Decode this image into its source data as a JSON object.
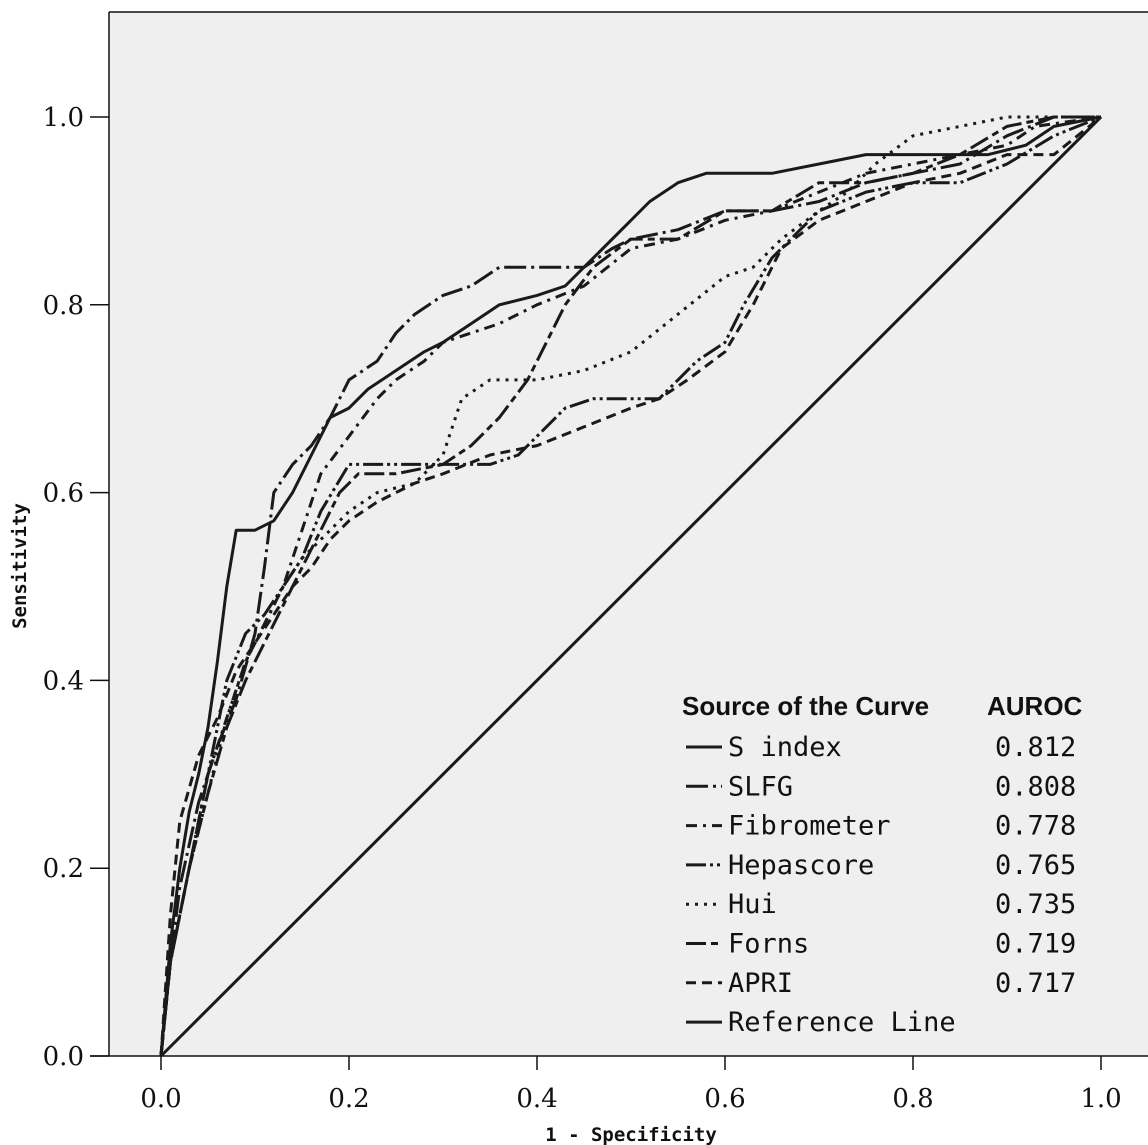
{
  "chart_data": {
    "type": "line",
    "title": "",
    "xlabel": "1 - Specificity",
    "ylabel": "Sensitivity",
    "xlim": [
      0,
      1
    ],
    "ylim": [
      0,
      1
    ],
    "x_ticks": [
      "0.0",
      "0.2",
      "0.4",
      "0.6",
      "0.8",
      "1.0"
    ],
    "y_ticks": [
      "0.0",
      "0.2",
      "0.4",
      "0.6",
      "0.8",
      "1.0"
    ],
    "grid": false,
    "legend": {
      "placement": "bottom-right",
      "header_source": "Source of the Curve",
      "header_value": "AUROC"
    },
    "series": [
      {
        "name": "S index",
        "auroc": "0.812",
        "dash": "solid",
        "points": [
          [
            0,
            0
          ],
          [
            0.01,
            0.12
          ],
          [
            0.02,
            0.2
          ],
          [
            0.03,
            0.26
          ],
          [
            0.04,
            0.3
          ],
          [
            0.05,
            0.35
          ],
          [
            0.06,
            0.42
          ],
          [
            0.07,
            0.5
          ],
          [
            0.08,
            0.56
          ],
          [
            0.1,
            0.56
          ],
          [
            0.12,
            0.57
          ],
          [
            0.14,
            0.6
          ],
          [
            0.16,
            0.64
          ],
          [
            0.18,
            0.68
          ],
          [
            0.2,
            0.69
          ],
          [
            0.22,
            0.71
          ],
          [
            0.25,
            0.73
          ],
          [
            0.28,
            0.75
          ],
          [
            0.3,
            0.76
          ],
          [
            0.33,
            0.78
          ],
          [
            0.36,
            0.8
          ],
          [
            0.4,
            0.81
          ],
          [
            0.43,
            0.82
          ],
          [
            0.45,
            0.84
          ],
          [
            0.47,
            0.86
          ],
          [
            0.5,
            0.89
          ],
          [
            0.52,
            0.91
          ],
          [
            0.55,
            0.93
          ],
          [
            0.58,
            0.94
          ],
          [
            0.65,
            0.94
          ],
          [
            0.7,
            0.95
          ],
          [
            0.75,
            0.96
          ],
          [
            0.8,
            0.96
          ],
          [
            0.88,
            0.96
          ],
          [
            0.92,
            0.97
          ],
          [
            0.95,
            0.99
          ],
          [
            1.0,
            1.0
          ]
        ]
      },
      {
        "name": "SLFG",
        "auroc": "0.808",
        "dash": "long-dash-dot",
        "points": [
          [
            0,
            0
          ],
          [
            0.01,
            0.1
          ],
          [
            0.02,
            0.18
          ],
          [
            0.04,
            0.27
          ],
          [
            0.06,
            0.33
          ],
          [
            0.08,
            0.38
          ],
          [
            0.1,
            0.45
          ],
          [
            0.11,
            0.52
          ],
          [
            0.12,
            0.6
          ],
          [
            0.14,
            0.63
          ],
          [
            0.16,
            0.65
          ],
          [
            0.18,
            0.68
          ],
          [
            0.2,
            0.72
          ],
          [
            0.23,
            0.74
          ],
          [
            0.25,
            0.77
          ],
          [
            0.27,
            0.79
          ],
          [
            0.3,
            0.81
          ],
          [
            0.33,
            0.82
          ],
          [
            0.36,
            0.84
          ],
          [
            0.4,
            0.84
          ],
          [
            0.45,
            0.84
          ],
          [
            0.48,
            0.86
          ],
          [
            0.5,
            0.87
          ],
          [
            0.55,
            0.88
          ],
          [
            0.6,
            0.9
          ],
          [
            0.65,
            0.9
          ],
          [
            0.7,
            0.91
          ],
          [
            0.75,
            0.93
          ],
          [
            0.8,
            0.94
          ],
          [
            0.85,
            0.95
          ],
          [
            0.9,
            0.98
          ],
          [
            0.95,
            1.0
          ],
          [
            1.0,
            1.0
          ]
        ]
      },
      {
        "name": "Fibrometer",
        "auroc": "0.778",
        "dash": "dash-dot",
        "points": [
          [
            0,
            0
          ],
          [
            0.01,
            0.1
          ],
          [
            0.03,
            0.2
          ],
          [
            0.05,
            0.3
          ],
          [
            0.07,
            0.36
          ],
          [
            0.09,
            0.42
          ],
          [
            0.11,
            0.46
          ],
          [
            0.13,
            0.5
          ],
          [
            0.15,
            0.56
          ],
          [
            0.17,
            0.62
          ],
          [
            0.2,
            0.66
          ],
          [
            0.23,
            0.7
          ],
          [
            0.25,
            0.72
          ],
          [
            0.28,
            0.74
          ],
          [
            0.3,
            0.76
          ],
          [
            0.33,
            0.77
          ],
          [
            0.36,
            0.78
          ],
          [
            0.4,
            0.8
          ],
          [
            0.45,
            0.82
          ],
          [
            0.5,
            0.86
          ],
          [
            0.55,
            0.87
          ],
          [
            0.6,
            0.89
          ],
          [
            0.65,
            0.9
          ],
          [
            0.7,
            0.92
          ],
          [
            0.75,
            0.94
          ],
          [
            0.8,
            0.95
          ],
          [
            0.85,
            0.96
          ],
          [
            0.9,
            0.97
          ],
          [
            0.93,
            0.99
          ],
          [
            1.0,
            1.0
          ]
        ]
      },
      {
        "name": "Hepascore",
        "auroc": "0.765",
        "dash": "long-dash-dot-dot",
        "points": [
          [
            0,
            0
          ],
          [
            0.01,
            0.1
          ],
          [
            0.03,
            0.2
          ],
          [
            0.05,
            0.3
          ],
          [
            0.07,
            0.4
          ],
          [
            0.09,
            0.45
          ],
          [
            0.11,
            0.47
          ],
          [
            0.13,
            0.5
          ],
          [
            0.15,
            0.53
          ],
          [
            0.17,
            0.58
          ],
          [
            0.2,
            0.63
          ],
          [
            0.25,
            0.63
          ],
          [
            0.3,
            0.63
          ],
          [
            0.35,
            0.63
          ],
          [
            0.38,
            0.64
          ],
          [
            0.4,
            0.66
          ],
          [
            0.43,
            0.69
          ],
          [
            0.46,
            0.7
          ],
          [
            0.5,
            0.7
          ],
          [
            0.53,
            0.7
          ],
          [
            0.55,
            0.72
          ],
          [
            0.57,
            0.74
          ],
          [
            0.6,
            0.76
          ],
          [
            0.62,
            0.8
          ],
          [
            0.65,
            0.85
          ],
          [
            0.68,
            0.88
          ],
          [
            0.7,
            0.9
          ],
          [
            0.75,
            0.92
          ],
          [
            0.8,
            0.93
          ],
          [
            0.85,
            0.93
          ],
          [
            0.9,
            0.95
          ],
          [
            0.95,
            0.98
          ],
          [
            1.0,
            1.0
          ]
        ]
      },
      {
        "name": "Hui",
        "auroc": "0.735",
        "dash": "dotted",
        "points": [
          [
            0,
            0
          ],
          [
            0.01,
            0.1
          ],
          [
            0.03,
            0.2
          ],
          [
            0.05,
            0.28
          ],
          [
            0.07,
            0.36
          ],
          [
            0.09,
            0.42
          ],
          [
            0.11,
            0.46
          ],
          [
            0.13,
            0.5
          ],
          [
            0.15,
            0.53
          ],
          [
            0.18,
            0.56
          ],
          [
            0.2,
            0.58
          ],
          [
            0.23,
            0.6
          ],
          [
            0.27,
            0.61
          ],
          [
            0.3,
            0.64
          ],
          [
            0.32,
            0.7
          ],
          [
            0.35,
            0.72
          ],
          [
            0.4,
            0.72
          ],
          [
            0.45,
            0.73
          ],
          [
            0.5,
            0.75
          ],
          [
            0.55,
            0.79
          ],
          [
            0.6,
            0.83
          ],
          [
            0.63,
            0.84
          ],
          [
            0.66,
            0.87
          ],
          [
            0.7,
            0.9
          ],
          [
            0.73,
            0.92
          ],
          [
            0.76,
            0.95
          ],
          [
            0.8,
            0.98
          ],
          [
            0.85,
            0.99
          ],
          [
            0.9,
            1.0
          ],
          [
            1.0,
            1.0
          ]
        ]
      },
      {
        "name": "Forns",
        "auroc": "0.719",
        "dash": "long-dash-short-dash",
        "points": [
          [
            0,
            0
          ],
          [
            0.01,
            0.1
          ],
          [
            0.03,
            0.2
          ],
          [
            0.05,
            0.28
          ],
          [
            0.07,
            0.35
          ],
          [
            0.09,
            0.4
          ],
          [
            0.11,
            0.44
          ],
          [
            0.13,
            0.48
          ],
          [
            0.15,
            0.52
          ],
          [
            0.17,
            0.56
          ],
          [
            0.19,
            0.6
          ],
          [
            0.21,
            0.62
          ],
          [
            0.25,
            0.62
          ],
          [
            0.3,
            0.63
          ],
          [
            0.33,
            0.65
          ],
          [
            0.36,
            0.68
          ],
          [
            0.39,
            0.72
          ],
          [
            0.41,
            0.76
          ],
          [
            0.43,
            0.8
          ],
          [
            0.46,
            0.84
          ],
          [
            0.5,
            0.87
          ],
          [
            0.55,
            0.87
          ],
          [
            0.6,
            0.9
          ],
          [
            0.65,
            0.9
          ],
          [
            0.7,
            0.93
          ],
          [
            0.75,
            0.93
          ],
          [
            0.8,
            0.94
          ],
          [
            0.85,
            0.96
          ],
          [
            0.9,
            0.99
          ],
          [
            0.95,
            1.0
          ],
          [
            1.0,
            1.0
          ]
        ]
      },
      {
        "name": "APRI",
        "auroc": "0.717",
        "dash": "dashed",
        "points": [
          [
            0,
            0
          ],
          [
            0.01,
            0.15
          ],
          [
            0.02,
            0.25
          ],
          [
            0.04,
            0.32
          ],
          [
            0.06,
            0.36
          ],
          [
            0.08,
            0.41
          ],
          [
            0.1,
            0.44
          ],
          [
            0.12,
            0.47
          ],
          [
            0.14,
            0.5
          ],
          [
            0.16,
            0.52
          ],
          [
            0.18,
            0.55
          ],
          [
            0.2,
            0.57
          ],
          [
            0.23,
            0.59
          ],
          [
            0.27,
            0.61
          ],
          [
            0.3,
            0.62
          ],
          [
            0.35,
            0.64
          ],
          [
            0.4,
            0.65
          ],
          [
            0.45,
            0.67
          ],
          [
            0.5,
            0.69
          ],
          [
            0.53,
            0.7
          ],
          [
            0.56,
            0.72
          ],
          [
            0.6,
            0.75
          ],
          [
            0.63,
            0.8
          ],
          [
            0.66,
            0.86
          ],
          [
            0.7,
            0.89
          ],
          [
            0.75,
            0.91
          ],
          [
            0.8,
            0.93
          ],
          [
            0.85,
            0.94
          ],
          [
            0.9,
            0.96
          ],
          [
            0.95,
            0.96
          ],
          [
            1.0,
            1.0
          ]
        ]
      },
      {
        "name": "Reference Line",
        "auroc": "",
        "dash": "solid",
        "points": [
          [
            0,
            0
          ],
          [
            1,
            1
          ]
        ]
      }
    ]
  }
}
